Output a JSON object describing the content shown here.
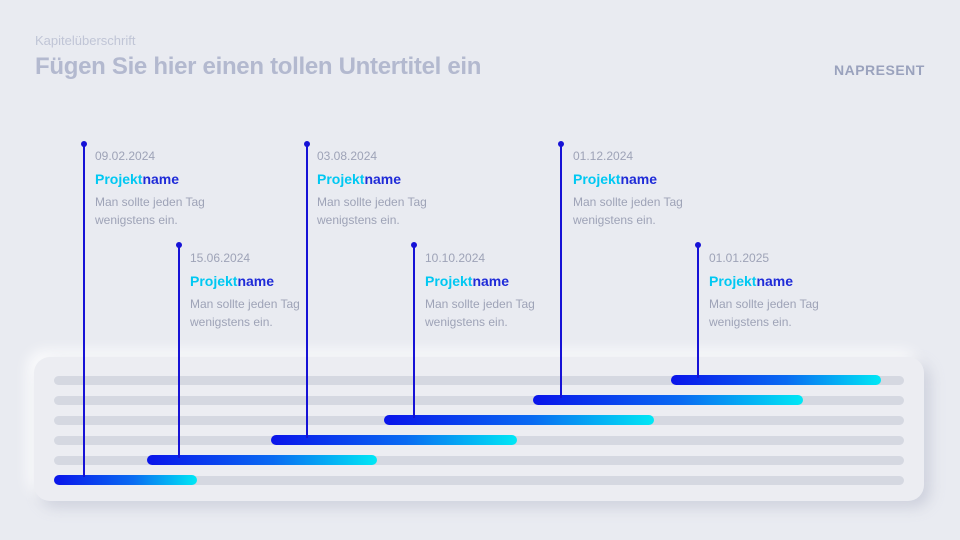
{
  "header": {
    "chapter": "Kapitelüberschrift",
    "subtitle": "Fügen Sie hier einen tollen Untertitel ein",
    "logo": "NAPRESENT"
  },
  "colors": {
    "stem": "#1612d6",
    "gradient_start": "#0a14ea",
    "gradient_end": "#00e8f5",
    "name_light": "#00c8f2",
    "name_dark": "#1f2bd8"
  },
  "milestones": [
    {
      "date": "09.02.2024",
      "name_a": "Projekt",
      "name_b": "name",
      "desc_1": "Man sollte jeden Tag",
      "desc_2": "wenigstens ein."
    },
    {
      "date": "15.06.2024",
      "name_a": "Projekt",
      "name_b": "name",
      "desc_1": "Man sollte jeden Tag",
      "desc_2": "wenigstens ein."
    },
    {
      "date": "03.08.2024",
      "name_a": "Projekt",
      "name_b": "name",
      "desc_1": "Man sollte jeden Tag",
      "desc_2": "wenigstens ein."
    },
    {
      "date": "10.10.2024",
      "name_a": "Projekt",
      "name_b": "name",
      "desc_1": "Man sollte jeden Tag",
      "desc_2": "wenigstens ein."
    },
    {
      "date": "01.12.2024",
      "name_a": "Projekt",
      "name_b": "name",
      "desc_1": "Man sollte jeden Tag",
      "desc_2": "wenigstens ein."
    },
    {
      "date": "01.01.2025",
      "name_a": "Projekt",
      "name_b": "name",
      "desc_1": "Man sollte jeden Tag",
      "desc_2": "wenigstens ein."
    }
  ]
}
